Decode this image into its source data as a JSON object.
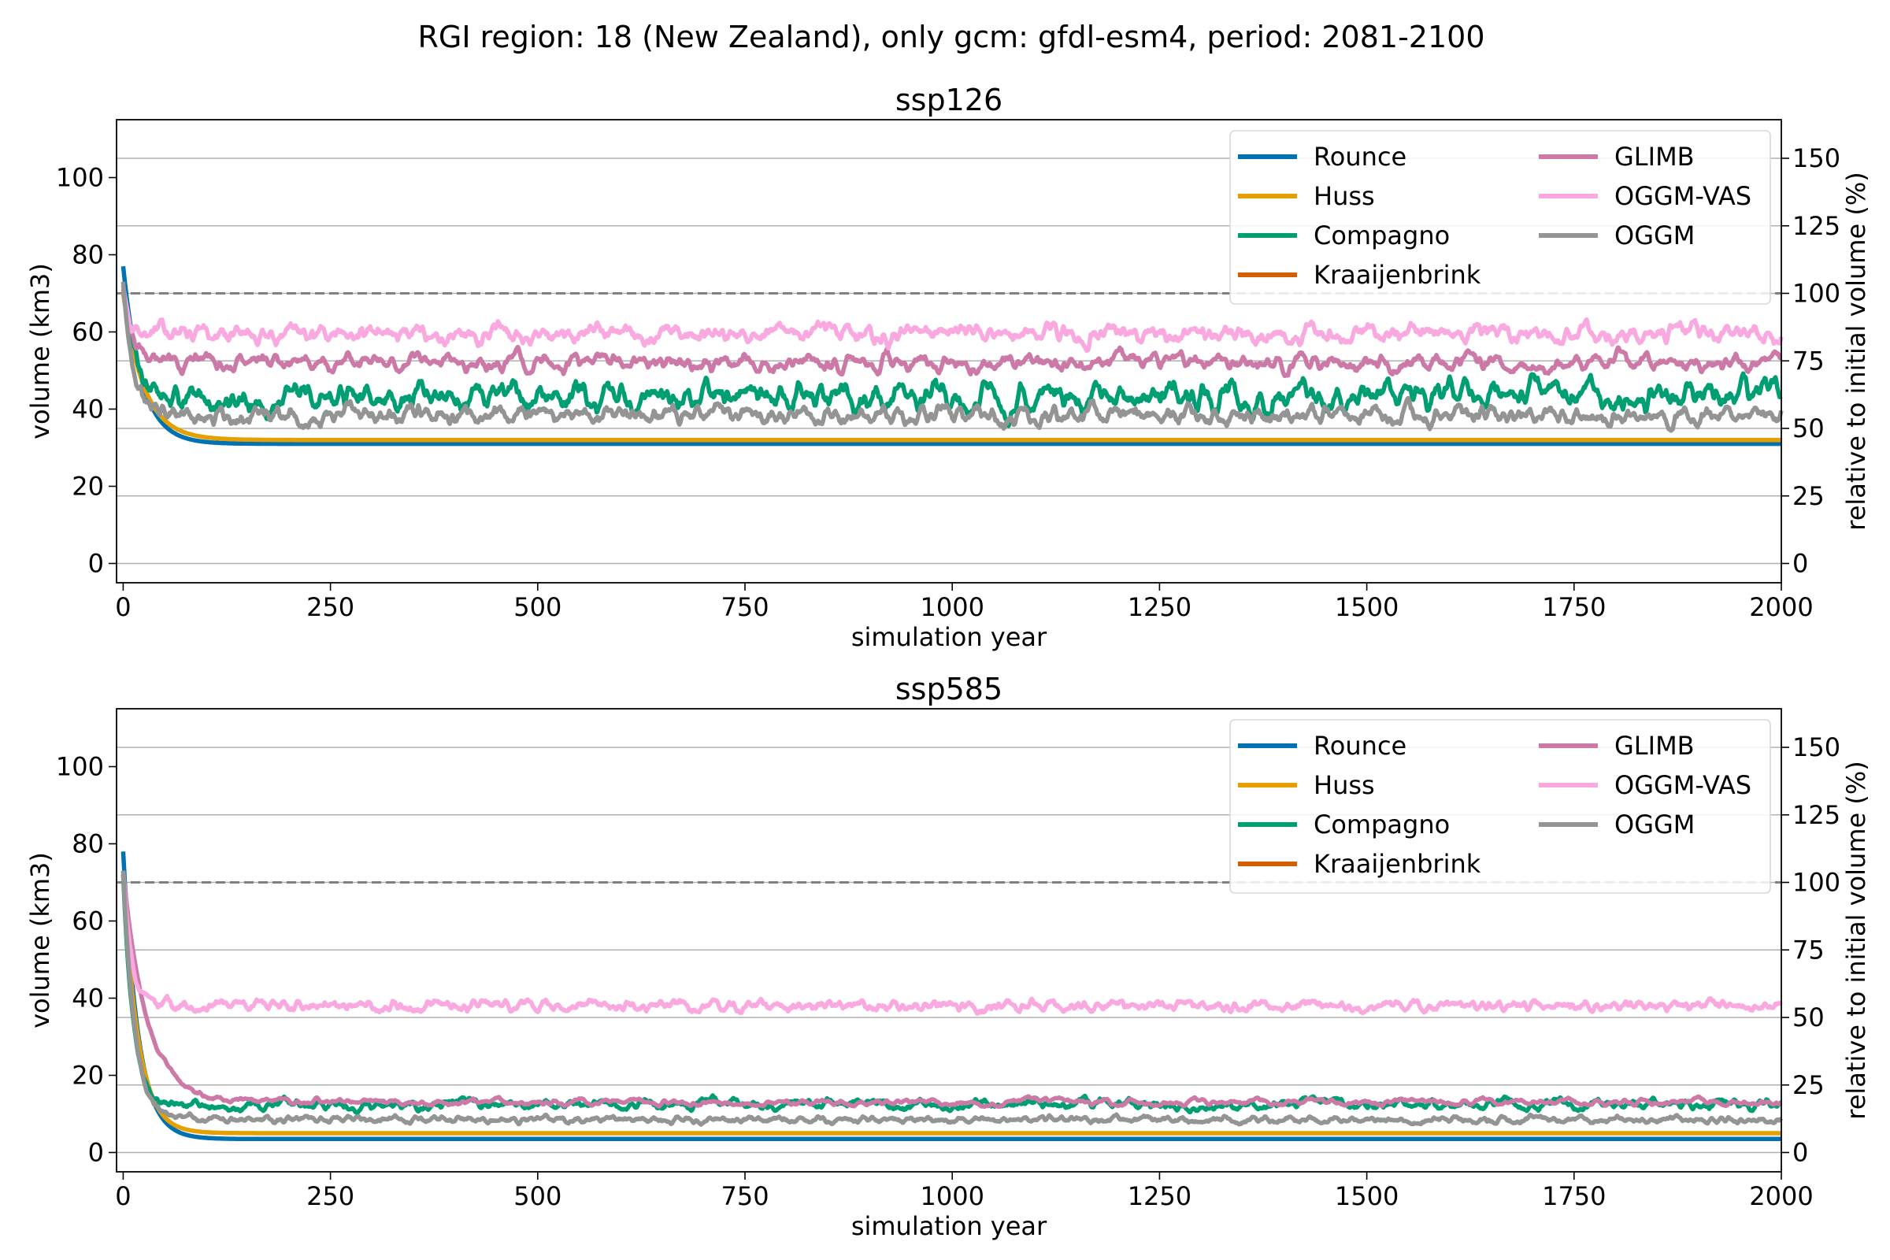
{
  "suptitle": "RGI region: 18 (New Zealand), only gcm: gfdl-esm4, period: 2081-2100",
  "chart_data": [
    {
      "type": "line",
      "title": "ssp126",
      "xlabel": "simulation year",
      "ylabel": "volume (km3)",
      "ylabel_right": "relative to initial volume (%)",
      "xlim": [
        -8,
        2000
      ],
      "ylim": [
        -5,
        115
      ],
      "xticks": [
        0,
        250,
        500,
        750,
        1000,
        1250,
        1500,
        1750,
        2000
      ],
      "yticks": [
        0,
        20,
        40,
        60,
        80,
        100
      ],
      "right_ticks": [
        0,
        25,
        50,
        75,
        100,
        125,
        150
      ],
      "initial_volume": 70,
      "reference_line_percent": 100,
      "grid": "horizontal, right axis",
      "legend_position": "top-right",
      "series": [
        {
          "name": "Rounce",
          "color": "#0072B2",
          "start": 77,
          "peak": 77,
          "final": 31,
          "tau": 22,
          "amplitude": 0.0,
          "smooth": 0.9
        },
        {
          "name": "Huss",
          "color": "#E69F00",
          "start": 70,
          "peak": 70,
          "final": 32,
          "tau": 25,
          "amplitude": 0.0,
          "smooth": 0.9
        },
        {
          "name": "Compagno",
          "color": "#009E73",
          "start": 72,
          "peak": 72,
          "final": 43,
          "tau": 15,
          "amplitude": 2.6,
          "smooth": 0.82
        },
        {
          "name": "Kraaijenbrink",
          "color": "#D55E00",
          "start": 70,
          "peak": 70,
          "final": 32,
          "tau": 25,
          "amplitude": 0.0,
          "smooth": 0.9,
          "hidden": true
        },
        {
          "name": "GLIMB",
          "color": "#CC79A7",
          "start": 71,
          "peak": 71,
          "final": 52,
          "tau": 10,
          "amplitude": 1.6,
          "smooth": 0.8
        },
        {
          "name": "OGGM-VAS",
          "color": "#F9A8E0",
          "start": 72,
          "peak": 72,
          "final": 59.5,
          "tau": 8,
          "amplitude": 1.9,
          "smooth": 0.7
        },
        {
          "name": "OGGM",
          "color": "#949494",
          "start": 73,
          "peak": 73,
          "final": 38.5,
          "tau": 12,
          "amplitude": 1.9,
          "smooth": 0.72
        }
      ]
    },
    {
      "type": "line",
      "title": "ssp585",
      "xlabel": "simulation year",
      "ylabel": "volume (km3)",
      "ylabel_right": "relative to initial volume (%)",
      "xlim": [
        -8,
        2000
      ],
      "ylim": [
        -5,
        115
      ],
      "xticks": [
        0,
        250,
        500,
        750,
        1000,
        1250,
        1500,
        1750,
        2000
      ],
      "yticks": [
        0,
        20,
        40,
        60,
        80,
        100
      ],
      "right_ticks": [
        0,
        25,
        50,
        75,
        100,
        125,
        150
      ],
      "initial_volume": 70,
      "reference_line_percent": 100,
      "grid": "horizontal, right axis",
      "legend_position": "top-right",
      "series": [
        {
          "name": "Rounce",
          "color": "#0072B2",
          "start": 78,
          "peak": 78,
          "final": 3.5,
          "tau": 18,
          "amplitude": 0.0,
          "smooth": 0.9
        },
        {
          "name": "Huss",
          "color": "#E69F00",
          "start": 72,
          "peak": 72,
          "final": 5,
          "tau": 18,
          "amplitude": 0.0,
          "smooth": 0.9
        },
        {
          "name": "Compagno",
          "color": "#009E73",
          "start": 72,
          "peak": 72,
          "final": 12.5,
          "tau": 12,
          "amplitude": 0.9,
          "smooth": 0.8
        },
        {
          "name": "Kraaijenbrink",
          "color": "#D55E00",
          "start": 72,
          "peak": 72,
          "final": 5,
          "tau": 18,
          "amplitude": 0.0,
          "smooth": 0.9,
          "hidden": true
        },
        {
          "name": "GLIMB",
          "color": "#CC79A7",
          "start": 73,
          "peak": 73,
          "final": 13,
          "tau": 28,
          "amplitude": 0.5,
          "smooth": 0.85
        },
        {
          "name": "OGGM-VAS",
          "color": "#F9A8E0",
          "start": 73,
          "peak": 73,
          "final": 38,
          "tau": 10,
          "amplitude": 1.2,
          "smooth": 0.7
        },
        {
          "name": "OGGM",
          "color": "#949494",
          "start": 73,
          "peak": 73,
          "final": 8.5,
          "tau": 14,
          "amplitude": 0.7,
          "smooth": 0.75
        }
      ]
    }
  ]
}
